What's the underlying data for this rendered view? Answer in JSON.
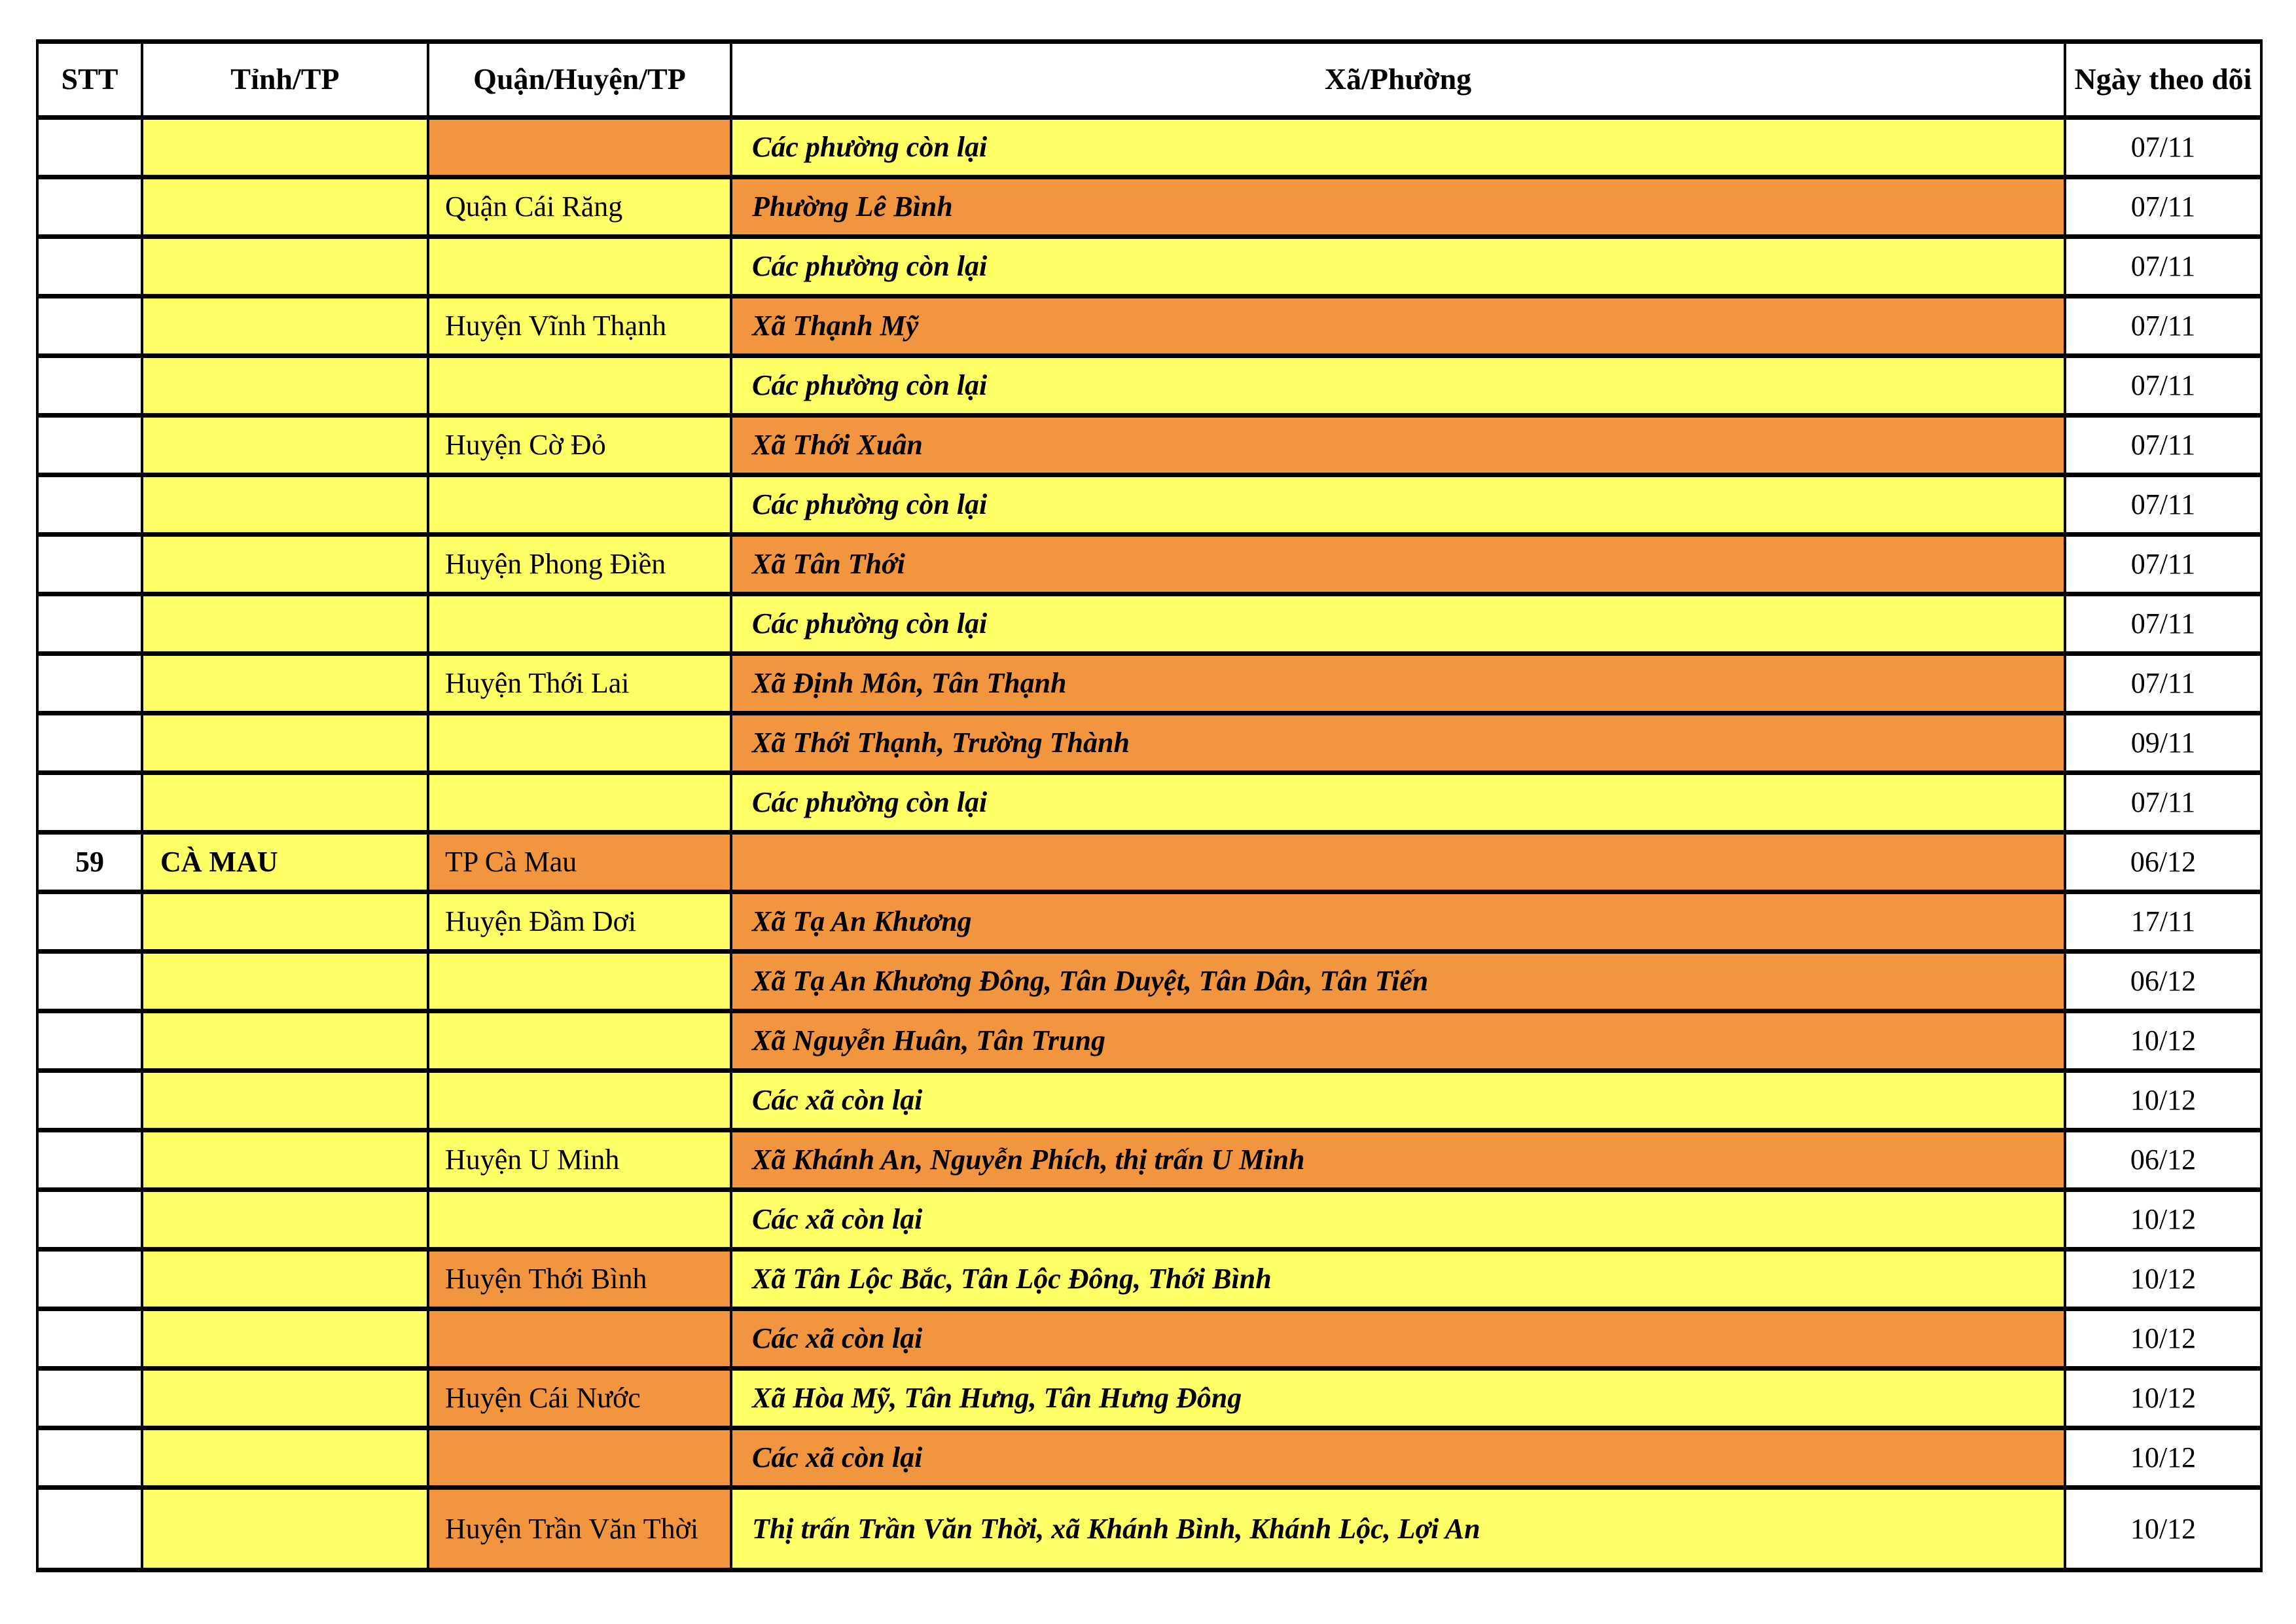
{
  "colors": {
    "yellow": "#FFFF66",
    "orange": "#F2953F",
    "border": "#000000",
    "date_cell_bg": "#FFFFFF"
  },
  "header": {
    "stt": "STT",
    "tinh": "Tỉnh/TP",
    "quan": "Quận/Huyện/TP",
    "xa": "Xã/Phường",
    "ngay": "Ngày theo dõi"
  },
  "rows": [
    {
      "stt": "",
      "tinh": "",
      "tinh_bg": "yellow",
      "quan": "",
      "quan_bg": "orange",
      "xa": "Các phường còn lại",
      "xa_bg": "yellow",
      "ngay": "07/11"
    },
    {
      "stt": "",
      "tinh": "",
      "tinh_bg": "yellow",
      "quan": "Quận Cái Răng",
      "quan_bg": "yellow",
      "xa": "Phường Lê Bình",
      "xa_bg": "orange",
      "ngay": "07/11"
    },
    {
      "stt": "",
      "tinh": "",
      "tinh_bg": "yellow",
      "quan": "",
      "quan_bg": "yellow",
      "xa": "Các phường còn lại",
      "xa_bg": "yellow",
      "ngay": "07/11"
    },
    {
      "stt": "",
      "tinh": "",
      "tinh_bg": "yellow",
      "quan": "Huyện Vĩnh Thạnh",
      "quan_bg": "yellow",
      "xa": "Xã Thạnh Mỹ",
      "xa_bg": "orange",
      "ngay": "07/11"
    },
    {
      "stt": "",
      "tinh": "",
      "tinh_bg": "yellow",
      "quan": "",
      "quan_bg": "yellow",
      "xa": "Các phường còn lại",
      "xa_bg": "yellow",
      "ngay": "07/11"
    },
    {
      "stt": "",
      "tinh": "",
      "tinh_bg": "yellow",
      "quan": "Huyện Cờ Đỏ",
      "quan_bg": "yellow",
      "xa": "Xã Thới Xuân",
      "xa_bg": "orange",
      "ngay": "07/11"
    },
    {
      "stt": "",
      "tinh": "",
      "tinh_bg": "yellow",
      "quan": "",
      "quan_bg": "yellow",
      "xa": "Các phường còn lại",
      "xa_bg": "yellow",
      "ngay": "07/11"
    },
    {
      "stt": "",
      "tinh": "",
      "tinh_bg": "yellow",
      "quan": "Huyện Phong Điền",
      "quan_bg": "yellow",
      "xa": "Xã Tân Thới",
      "xa_bg": "orange",
      "ngay": "07/11"
    },
    {
      "stt": "",
      "tinh": "",
      "tinh_bg": "yellow",
      "quan": "",
      "quan_bg": "yellow",
      "xa": "Các phường còn lại",
      "xa_bg": "yellow",
      "ngay": "07/11"
    },
    {
      "stt": "",
      "tinh": "",
      "tinh_bg": "yellow",
      "quan": "Huyện Thới Lai",
      "quan_bg": "yellow",
      "xa": "Xã Định Môn, Tân Thạnh",
      "xa_bg": "orange",
      "ngay": "07/11"
    },
    {
      "stt": "",
      "tinh": "",
      "tinh_bg": "yellow",
      "quan": "",
      "quan_bg": "yellow",
      "xa": "Xã Thới Thạnh, Trường Thành",
      "xa_bg": "orange",
      "ngay": "09/11"
    },
    {
      "stt": "",
      "tinh": "",
      "tinh_bg": "yellow",
      "quan": "",
      "quan_bg": "yellow",
      "xa": "Các phường còn lại",
      "xa_bg": "yellow",
      "ngay": "07/11"
    },
    {
      "stt": "59",
      "tinh": "CÀ MAU",
      "tinh_bg": "yellow",
      "quan": "TP Cà Mau",
      "quan_bg": "orange",
      "xa": "",
      "xa_bg": "orange",
      "ngay": "06/12"
    },
    {
      "stt": "",
      "tinh": "",
      "tinh_bg": "yellow",
      "quan": "Huyện Đầm Dơi",
      "quan_bg": "yellow",
      "xa": "Xã Tạ An Khương",
      "xa_bg": "orange",
      "ngay": "17/11"
    },
    {
      "stt": "",
      "tinh": "",
      "tinh_bg": "yellow",
      "quan": "",
      "quan_bg": "yellow",
      "xa": "Xã Tạ An Khương Đông, Tân Duyệt, Tân Dân, Tân Tiến",
      "xa_bg": "orange",
      "ngay": "06/12"
    },
    {
      "stt": "",
      "tinh": "",
      "tinh_bg": "yellow",
      "quan": "",
      "quan_bg": "yellow",
      "xa": "Xã Nguyễn Huân, Tân Trung",
      "xa_bg": "orange",
      "ngay": "10/12"
    },
    {
      "stt": "",
      "tinh": "",
      "tinh_bg": "yellow",
      "quan": "",
      "quan_bg": "yellow",
      "xa": "Các xã còn lại",
      "xa_bg": "yellow",
      "ngay": "10/12"
    },
    {
      "stt": "",
      "tinh": "",
      "tinh_bg": "yellow",
      "quan": "Huyện U Minh",
      "quan_bg": "yellow",
      "xa": "Xã Khánh An, Nguyễn Phích, thị trấn U Minh",
      "xa_bg": "orange",
      "ngay": "06/12"
    },
    {
      "stt": "",
      "tinh": "",
      "tinh_bg": "yellow",
      "quan": "",
      "quan_bg": "yellow",
      "xa": "Các xã còn lại",
      "xa_bg": "yellow",
      "ngay": "10/12"
    },
    {
      "stt": "",
      "tinh": "",
      "tinh_bg": "yellow",
      "quan": "Huyện Thới Bình",
      "quan_bg": "orange",
      "xa": "Xã Tân Lộc Bắc, Tân Lộc Đông, Thới Bình",
      "xa_bg": "yellow",
      "ngay": "10/12"
    },
    {
      "stt": "",
      "tinh": "",
      "tinh_bg": "yellow",
      "quan": "",
      "quan_bg": "orange",
      "xa": "Các xã còn lại",
      "xa_bg": "orange",
      "ngay": "10/12"
    },
    {
      "stt": "",
      "tinh": "",
      "tinh_bg": "yellow",
      "quan": "Huyện Cái Nước",
      "quan_bg": "orange",
      "xa": "Xã Hòa Mỹ, Tân Hưng, Tân Hưng Đông",
      "xa_bg": "yellow",
      "ngay": "10/12"
    },
    {
      "stt": "",
      "tinh": "",
      "tinh_bg": "yellow",
      "quan": "",
      "quan_bg": "orange",
      "xa": "Các xã còn lại",
      "xa_bg": "orange",
      "ngay": "10/12"
    },
    {
      "stt": "",
      "tinh": "",
      "tinh_bg": "yellow",
      "quan": "Huyện Trần Văn Thời",
      "quan_bg": "orange",
      "xa": "Thị trấn Trần Văn Thời, xã Khánh Bình, Khánh Lộc, Lợi An",
      "xa_bg": "yellow",
      "ngay": "10/12"
    }
  ]
}
